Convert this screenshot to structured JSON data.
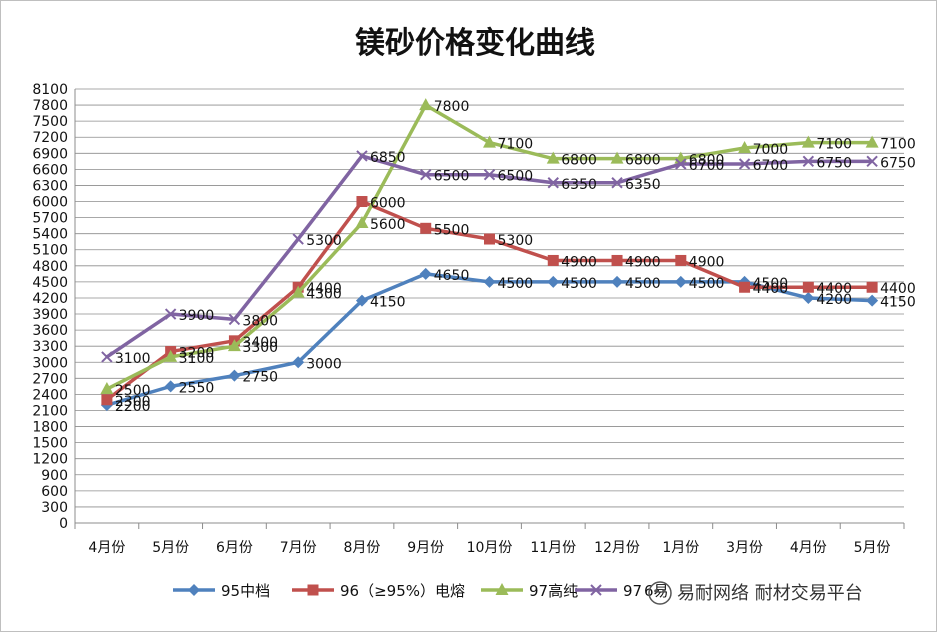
{
  "chart_data": {
    "type": "line",
    "title": "镁砂价格变化曲线",
    "categories": [
      "4月份",
      "5月份",
      "6月份",
      "7月份",
      "8月份",
      "9月份",
      "10月份",
      "11月份",
      "12月份",
      "1月份",
      "3月份",
      "4月份",
      "5月份"
    ],
    "ylim": [
      0,
      8100
    ],
    "yticks": [
      0,
      300,
      600,
      900,
      1200,
      1500,
      1800,
      2100,
      2400,
      2700,
      3000,
      3300,
      3600,
      3900,
      4200,
      4500,
      4800,
      5100,
      5400,
      5700,
      6000,
      6300,
      6600,
      6900,
      7200,
      7500,
      7800,
      8100
    ],
    "grid": true,
    "legend_position": "bottom",
    "series": [
      {
        "name": "95中档",
        "color": "#4f81bd",
        "marker": "diamond",
        "values": [
          2200,
          2550,
          2750,
          3000,
          4150,
          4650,
          4500,
          4500,
          4500,
          4500,
          4500,
          4200,
          4150
        ]
      },
      {
        "name": "96（≥95%）电熔",
        "color": "#c0504d",
        "marker": "square",
        "values": [
          2300,
          3200,
          3400,
          4400,
          6000,
          5500,
          5300,
          4900,
          4900,
          4900,
          4400,
          4400,
          4400
        ]
      },
      {
        "name": "97高纯",
        "color": "#9bbb59",
        "marker": "triangle",
        "values": [
          2500,
          3100,
          3300,
          4300,
          5600,
          7800,
          7100,
          6800,
          6800,
          6800,
          7000,
          7100,
          7100
        ]
      },
      {
        "name": "97",
        "color": "#8064a2",
        "marker": "x",
        "values": [
          3100,
          3900,
          3800,
          5300,
          6850,
          6500,
          6500,
          6350,
          6350,
          6700,
          6700,
          6750,
          6750
        ]
      }
    ]
  },
  "legend": {
    "partial_suffix": "6易"
  },
  "watermark": {
    "text": "易耐网络 耐材交易平台"
  }
}
